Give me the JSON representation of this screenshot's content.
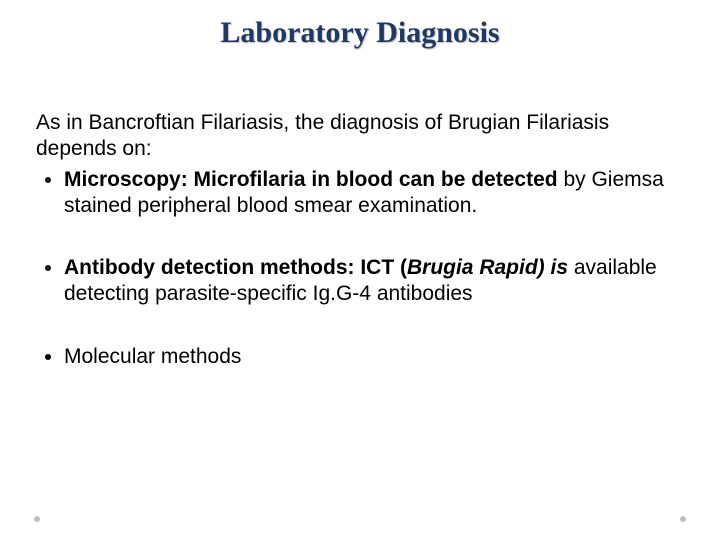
{
  "title": "Laboratory Diagnosis",
  "intro": "As in Bancroftian Filariasis, the diagnosis of Brugian Filariasis depends on:",
  "bullets": {
    "b1_lead": " Microscopy: Microfilaria in blood can be detected ",
    "b1_tail": "by Giemsa stained peripheral blood smear examination.",
    "b2_lead": "Antibody detection methods: ICT (",
    "b2_italic": "Brugia Rapid) is ",
    "b2_tail": "available detecting parasite-specific Ig.G-4 antibodies",
    "b3": "Molecular methods"
  },
  "colors": {
    "title_color": "#1f3864",
    "text_color": "#000000",
    "background": "#ffffff",
    "dot_color": "#bfbfbf"
  },
  "typography": {
    "title_font": "Book Antiqua",
    "title_size_pt": 28,
    "title_weight": "bold",
    "body_font": "Arial",
    "body_size_pt": 18,
    "body_weight": "normal"
  }
}
